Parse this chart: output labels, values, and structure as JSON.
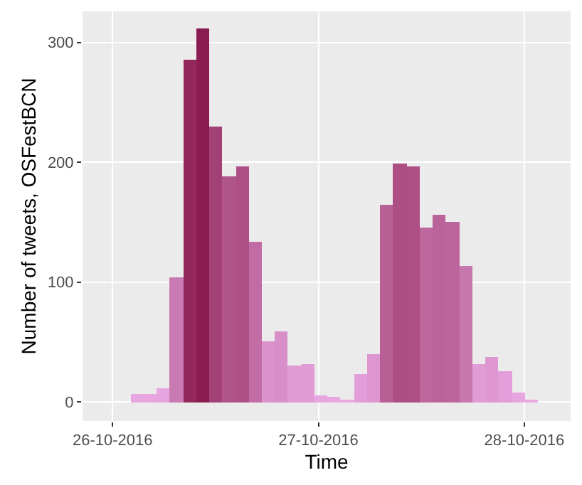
{
  "chart_data": {
    "type": "histogram",
    "xlabel": "Time",
    "ylabel": "Number of tweets, OSFestBCN",
    "bins": [
      "2016-10-26T02:04",
      "2016-10-26T03:36",
      "2016-10-26T05:08",
      "2016-10-26T06:40",
      "2016-10-26T08:12",
      "2016-10-26T09:44",
      "2016-10-26T11:16",
      "2016-10-26T12:48",
      "2016-10-26T14:20",
      "2016-10-26T15:52",
      "2016-10-26T17:24",
      "2016-10-26T18:56",
      "2016-10-26T20:28",
      "2016-10-26T22:00",
      "2016-10-26T23:32",
      "2016-10-27T01:04",
      "2016-10-27T02:36",
      "2016-10-27T04:08",
      "2016-10-27T05:40",
      "2016-10-27T07:12",
      "2016-10-27T08:44",
      "2016-10-27T10:16",
      "2016-10-27T11:48",
      "2016-10-27T13:20",
      "2016-10-27T14:52",
      "2016-10-27T16:24",
      "2016-10-27T17:56",
      "2016-10-27T19:28",
      "2016-10-27T21:00",
      "2016-10-27T22:32",
      "2016-10-28T00:04",
      "2016-10-28T01:36"
    ],
    "values": [
      6,
      7,
      11,
      104,
      286,
      312,
      230,
      188,
      196,
      134,
      50,
      59,
      30,
      31,
      5,
      4,
      1,
      23,
      40,
      164,
      199,
      197,
      145,
      156,
      150,
      113,
      31,
      38,
      25,
      8,
      1
    ],
    "colors": [
      "#e8a6e1",
      "#e8a5e0",
      "#e7a4de",
      "#ca7ab2",
      "#92285c",
      "#8a1c50",
      "#a34177",
      "#b0548b",
      "#ae5087",
      "#c16ca4",
      "#db92cc",
      "#d88ec8",
      "#e19bd5",
      "#e19bd5",
      "#e8a6e1",
      "#e9a7e2",
      "#eaa8e3",
      "#e39ed9",
      "#de96d1",
      "#b85f96",
      "#ad4f85",
      "#ae5086",
      "#be679f",
      "#ba629a",
      "#bc659d",
      "#c776ae",
      "#e19bd5",
      "#df97d2",
      "#e39dd8",
      "#e8a5e0",
      "#eaa8e3"
    ],
    "xlim": [
      "2016-10-25T20:30",
      "2016-10-28T05:24"
    ],
    "xticks": [
      {
        "value": "2016-10-26",
        "label": "26-10-2016"
      },
      {
        "value": "2016-10-27",
        "label": "27-10-2016"
      },
      {
        "value": "2016-10-28",
        "label": "28-10-2016"
      }
    ],
    "ylim": [
      -16,
      326
    ],
    "yticks": [
      0,
      100,
      200,
      300
    ],
    "grid": true
  }
}
